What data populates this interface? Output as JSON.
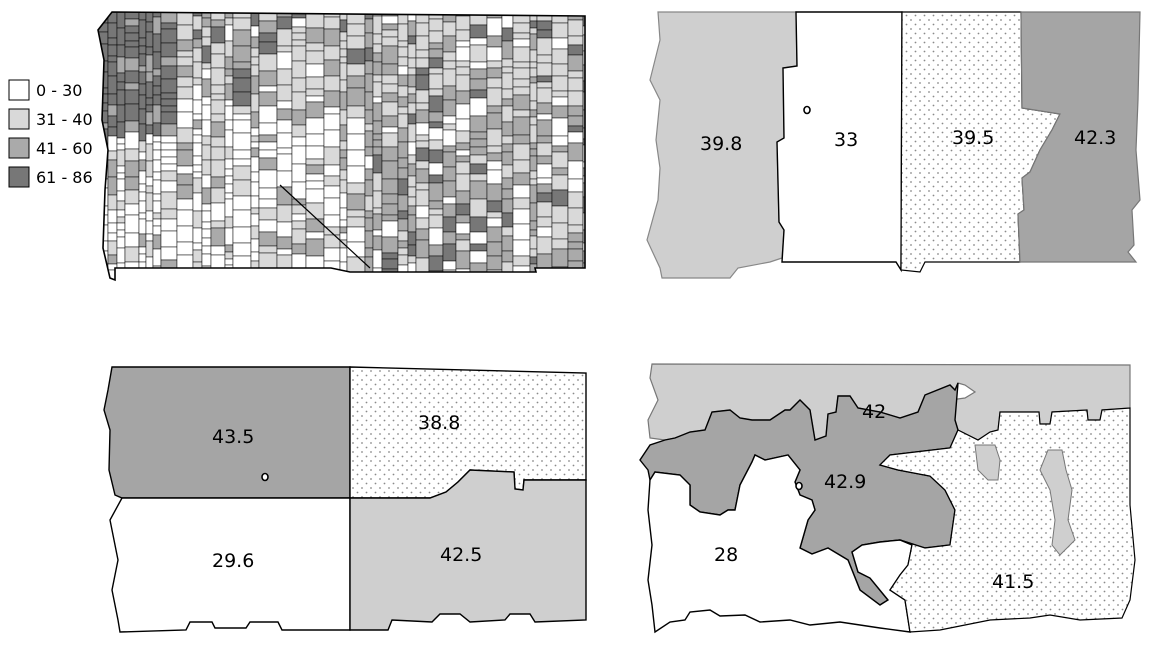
{
  "legend": {
    "items": [
      {
        "label": "0 - 30",
        "color": "#ffffff"
      },
      {
        "label": "31 - 40",
        "color": "#d9d9d9"
      },
      {
        "label": "41 - 60",
        "color": "#aaaaaa"
      },
      {
        "label": "61 - 86",
        "color": "#777777"
      }
    ]
  },
  "colors": {
    "light": "#cfcfcf",
    "medium": "#a5a5a5",
    "white": "#ffffff",
    "border": "#000000",
    "dots": "#8a8a8a"
  },
  "maps": {
    "top_right": {
      "districts": [
        {
          "value": "39.8",
          "fill": "light"
        },
        {
          "value": "33",
          "fill": "white"
        },
        {
          "value": "39.5",
          "fill": "dotted"
        },
        {
          "value": "42.3",
          "fill": "medium"
        }
      ]
    },
    "bottom_left": {
      "districts": [
        {
          "value": "43.5",
          "fill": "medium"
        },
        {
          "value": "38.8",
          "fill": "dotted"
        },
        {
          "value": "29.6",
          "fill": "white"
        },
        {
          "value": "42.5",
          "fill": "light"
        }
      ]
    },
    "bottom_right": {
      "districts": [
        {
          "value": "42",
          "fill": "light"
        },
        {
          "value": "42.9",
          "fill": "medium"
        },
        {
          "value": "28",
          "fill": "white"
        },
        {
          "value": "41.5",
          "fill": "dotted"
        }
      ]
    }
  }
}
